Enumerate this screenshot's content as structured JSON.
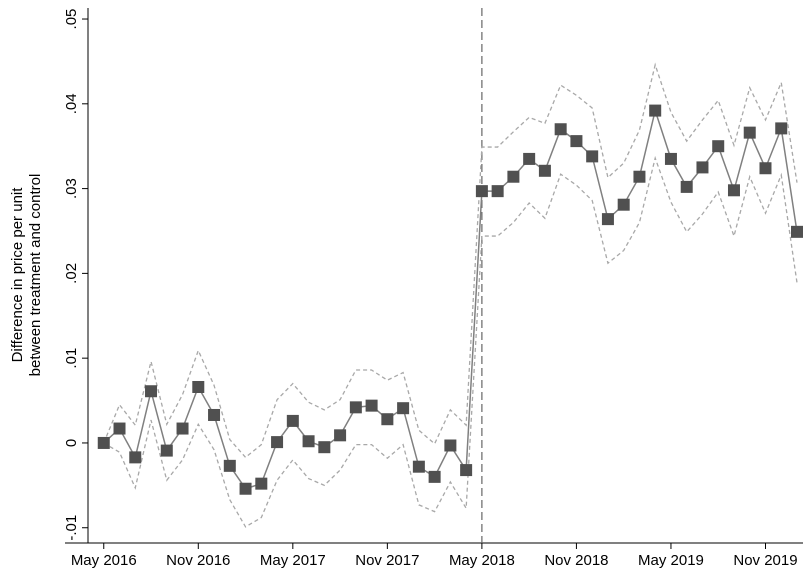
{
  "chart_data": {
    "type": "line",
    "ylabel": [
      "Difference in price per unit",
      "between treatment and control"
    ],
    "x": [
      "2016-05",
      "2016-06",
      "2016-07",
      "2016-08",
      "2016-09",
      "2016-10",
      "2016-11",
      "2016-12",
      "2017-01",
      "2017-02",
      "2017-03",
      "2017-04",
      "2017-05",
      "2017-06",
      "2017-07",
      "2017-08",
      "2017-09",
      "2017-10",
      "2017-11",
      "2017-12",
      "2018-01",
      "2018-02",
      "2018-03",
      "2018-04",
      "2018-05",
      "2018-06",
      "2018-07",
      "2018-08",
      "2018-09",
      "2018-10",
      "2018-11",
      "2018-12",
      "2019-01",
      "2019-02",
      "2019-03",
      "2019-04",
      "2019-05",
      "2019-06",
      "2019-07",
      "2019-08",
      "2019-09",
      "2019-10",
      "2019-11",
      "2019-12",
      "2020-01"
    ],
    "series": [
      {
        "color": "#808080",
        "marker_color": "#505050",
        "style": "marker",
        "values": [
          0,
          0.0017,
          -0.0017,
          0.0061,
          -0.0009,
          0.0017,
          0.0066,
          0.0033,
          -0.0027,
          -0.0054,
          -0.0048,
          0.0001,
          0.0026,
          0.0002,
          -0.0005,
          0.0009,
          0.0042,
          0.0044,
          0.0028,
          0.0041,
          -0.0028,
          -0.004,
          -0.0003,
          -0.0032,
          0.0297,
          0.0297,
          0.0314,
          0.0335,
          0.0321,
          0.037,
          0.0356,
          0.0338,
          0.0264,
          0.0281,
          0.0314,
          0.0392,
          0.0335,
          0.0302,
          0.0325,
          0.035,
          0.0298,
          0.0366,
          0.0324,
          0.0371,
          0.0249
        ]
      },
      {
        "color": "#a8a8a8",
        "style": "dashed",
        "values": [
          0,
          0.0045,
          0.0021,
          0.0096,
          0.0022,
          0.0057,
          0.0109,
          0.0068,
          0.0004,
          -0.0017,
          -0.0002,
          0.0051,
          0.007,
          0.0048,
          0.0039,
          0.0051,
          0.0086,
          0.0086,
          0.0074,
          0.0083,
          0.0015,
          -0.0001,
          0.0039,
          0.0021,
          0.0349,
          0.0349,
          0.0367,
          0.0384,
          0.0377,
          0.0422,
          0.041,
          0.0395,
          0.0313,
          0.033,
          0.0369,
          0.0446,
          0.039,
          0.0356,
          0.0381,
          0.0404,
          0.0351,
          0.0419,
          0.0381,
          0.0425,
          0.0307
        ]
      },
      {
        "color": "#a8a8a8",
        "style": "dashed",
        "values": [
          0,
          -0.0011,
          -0.0053,
          0.0027,
          -0.0044,
          -0.002,
          0.0022,
          -0.0008,
          -0.0067,
          -0.0099,
          -0.0088,
          -0.0044,
          -0.002,
          -0.0042,
          -0.005,
          -0.0032,
          -0.0002,
          -0.0002,
          -0.0018,
          -0.0002,
          -0.0073,
          -0.0081,
          -0.0046,
          -0.0077,
          0.0244,
          0.0244,
          0.026,
          0.0283,
          0.0265,
          0.0317,
          0.0304,
          0.0286,
          0.0212,
          0.0227,
          0.026,
          0.0336,
          0.0284,
          0.0249,
          0.027,
          0.0296,
          0.0244,
          0.0314,
          0.0271,
          0.0316,
          0.0189
        ]
      }
    ],
    "vline": "2018-05",
    "vline_color": "#666666",
    "xlim": [
      "2016-04",
      "2020-01"
    ],
    "xticks": [
      {
        "value": "2016-05",
        "label": "May 2016"
      },
      {
        "value": "2016-11",
        "label": "Nov 2016"
      },
      {
        "value": "2017-05",
        "label": "May 2017"
      },
      {
        "value": "2017-11",
        "label": "Nov 2017"
      },
      {
        "value": "2018-05",
        "label": "May 2018"
      },
      {
        "value": "2018-11",
        "label": "Nov 2018"
      },
      {
        "value": "2019-05",
        "label": "May 2019"
      },
      {
        "value": "2019-11",
        "label": "Nov 2019"
      }
    ],
    "ylim": [
      -0.0118,
      0.0513
    ],
    "yticks": [
      {
        "value": -0.01,
        "label": "-.01"
      },
      0,
      {
        "value": 0.01,
        "label": ".01"
      },
      {
        "value": 0.02,
        "label": ".02"
      },
      {
        "value": 0.03,
        "label": ".03"
      },
      {
        "value": 0.04,
        "label": ".04"
      },
      {
        "value": 0.05,
        "label": ".05"
      }
    ],
    "grid": false
  }
}
